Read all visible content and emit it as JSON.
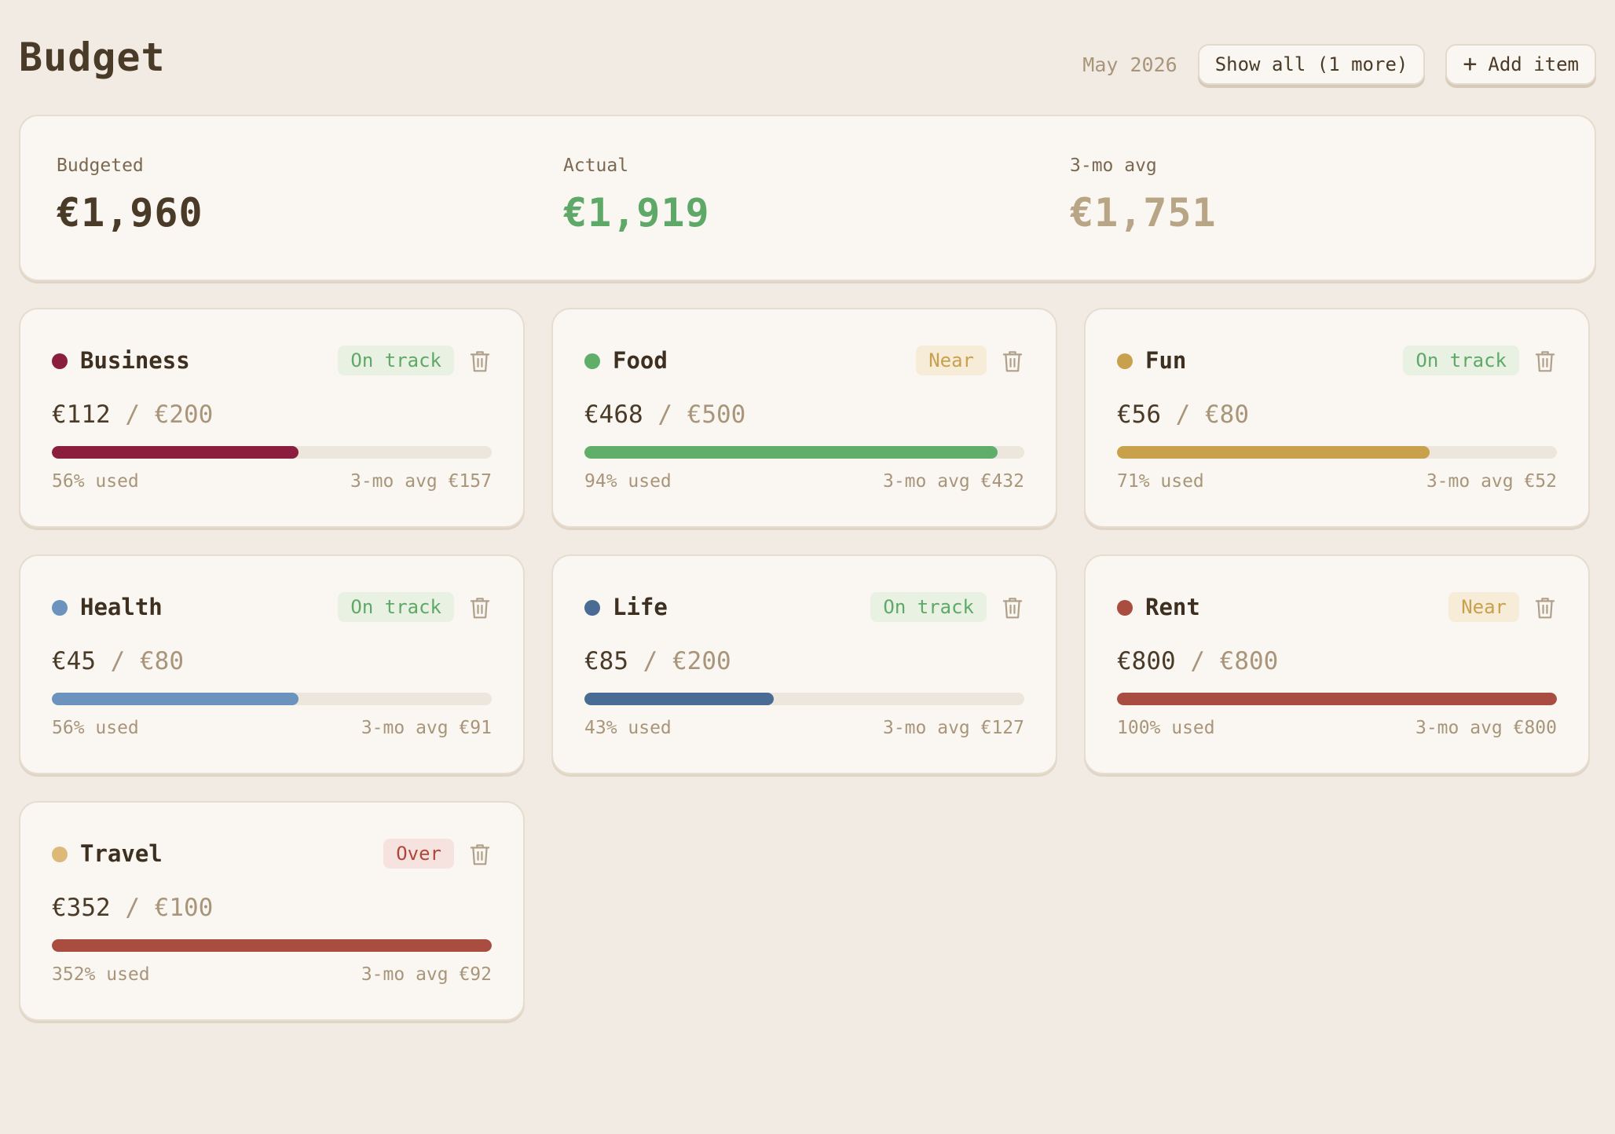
{
  "header": {
    "title": "Budget",
    "month": "May 2026",
    "show_all_label": "Show all (1 more)",
    "add_item_label": "Add item"
  },
  "summary": {
    "budgeted_label": "Budgeted",
    "budgeted_value": "€1,960",
    "actual_label": "Actual",
    "actual_value": "€1,919",
    "avg_label": "3-mo avg",
    "avg_value": "€1,751",
    "colors": {
      "budgeted": "#4a3a28",
      "actual": "#5ea868",
      "avg": "#b8a585"
    }
  },
  "categories": [
    {
      "name": "Business",
      "status": "On track",
      "status_kind": "ok",
      "actual": "€112",
      "limit": "€200",
      "used_pct": 56,
      "used_label": "56% used",
      "avg_label": "3-mo avg €157",
      "color": "#8b1e3f"
    },
    {
      "name": "Food",
      "status": "Near",
      "status_kind": "near",
      "actual": "€468",
      "limit": "€500",
      "used_pct": 94,
      "used_label": "94% used",
      "avg_label": "3-mo avg €432",
      "color": "#5fae6a"
    },
    {
      "name": "Fun",
      "status": "On track",
      "status_kind": "ok",
      "actual": "€56",
      "limit": "€80",
      "used_pct": 71,
      "used_label": "71% used",
      "avg_label": "3-mo avg €52",
      "color": "#c9a04c"
    },
    {
      "name": "Health",
      "status": "On track",
      "status_kind": "ok",
      "actual": "€45",
      "limit": "€80",
      "used_pct": 56,
      "used_label": "56% used",
      "avg_label": "3-mo avg €91",
      "color": "#6b93bd"
    },
    {
      "name": "Life",
      "status": "On track",
      "status_kind": "ok",
      "actual": "€85",
      "limit": "€200",
      "used_pct": 43,
      "used_label": "43% used",
      "avg_label": "3-mo avg €127",
      "color": "#4a6b94"
    },
    {
      "name": "Rent",
      "status": "Near",
      "status_kind": "near",
      "actual": "€800",
      "limit": "€800",
      "used_pct": 100,
      "used_label": "100% used",
      "avg_label": "3-mo avg €800",
      "color": "#a84d3f"
    },
    {
      "name": "Travel",
      "status": "Over",
      "status_kind": "over",
      "actual": "€352",
      "limit": "€100",
      "used_pct": 352,
      "used_label": "352% used",
      "avg_label": "3-mo avg €92",
      "color": "#dcb879",
      "bar_color": "#a84d3f"
    }
  ],
  "badge_styles": {
    "ok": {
      "bg": "#e9f1e3",
      "fg": "#5ea868"
    },
    "near": {
      "bg": "#f6ecd8",
      "fg": "#c9a04c"
    },
    "over": {
      "bg": "#f6e3df",
      "fg": "#b0463a"
    }
  },
  "icons": {
    "trash": "trash-icon",
    "plus": "plus-icon"
  }
}
